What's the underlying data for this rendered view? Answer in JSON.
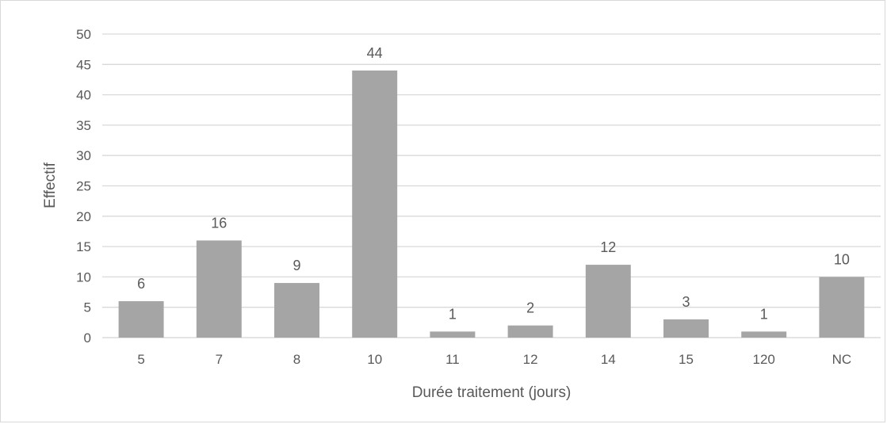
{
  "chart_data": {
    "type": "bar",
    "title": "",
    "xlabel": "Durée traitement (jours)",
    "ylabel": "Effectif",
    "categories": [
      "5",
      "7",
      "8",
      "10",
      "11",
      "12",
      "14",
      "15",
      "120",
      "NC"
    ],
    "values": [
      6,
      16,
      9,
      44,
      1,
      2,
      12,
      3,
      1,
      10
    ],
    "ylim": [
      0,
      50
    ],
    "yticks": [
      0,
      5,
      10,
      15,
      20,
      25,
      30,
      35,
      40,
      45,
      50
    ],
    "grid": true,
    "legend": "none",
    "data_labels": true,
    "bar_color": "#a5a5a5",
    "grid_color": "#d9d9d9"
  }
}
